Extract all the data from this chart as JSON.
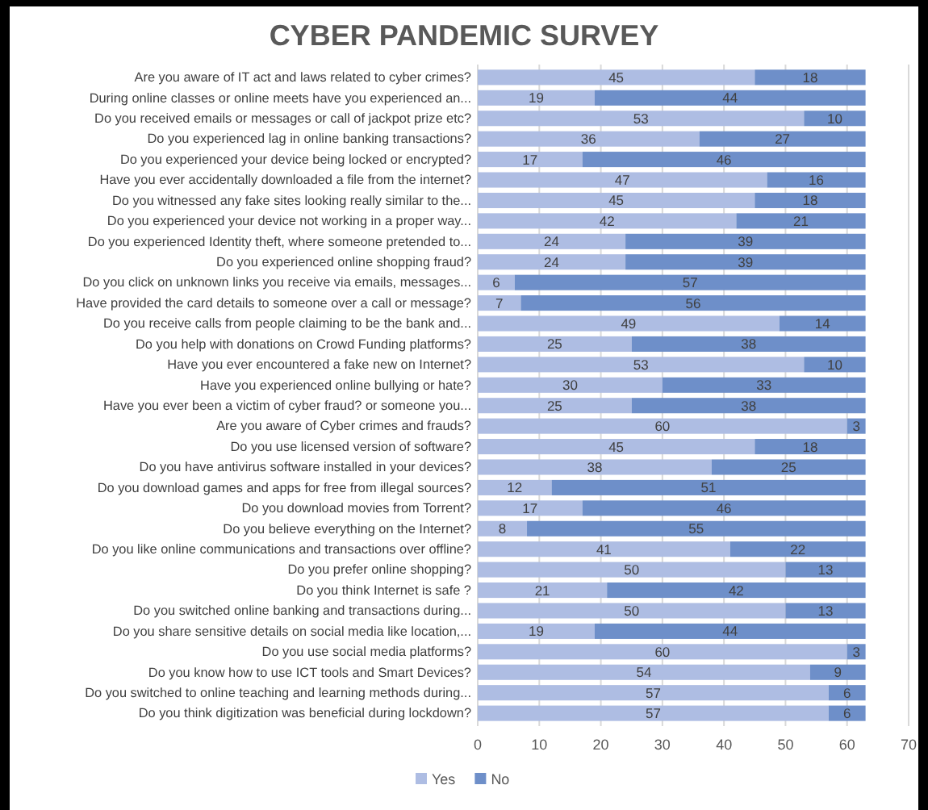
{
  "chart_data": {
    "type": "bar",
    "orientation": "horizontal",
    "stacked": true,
    "title": "CYBER PANDEMIC SURVEY",
    "categories": [
      "Are you aware of IT act and laws related to cyber crimes?",
      "During online classes or online meets have you experienced an...",
      "Do you received emails or messages or call of jackpot prize etc?",
      "Do you experienced lag in online banking transactions?",
      "Do you experienced your device being locked or encrypted?",
      "Have you ever accidentally downloaded a file from the internet?",
      "Do you witnessed any fake sites looking really similar to the...",
      "Do you experienced your device not working in a proper way...",
      "Do you experienced Identity theft, where someone  pretended to...",
      "Do you experienced online shopping fraud?",
      "Do you click on unknown links you receive via emails, messages...",
      "Have provided the card details to someone over a call or message?",
      "Do you receive calls from people claiming to be the bank and...",
      "Do you help with donations on Crowd Funding platforms?",
      "Have you ever encountered a fake new on Internet?",
      "Have you experienced online bullying or hate?",
      "Have you ever been a victim of cyber fraud? or someone you...",
      "Are you aware of Cyber crimes and frauds?",
      "Do you use licensed version of software?",
      "Do you have antivirus software installed in your devices?",
      "Do you download games and apps for free from illegal sources?",
      "Do you download movies from Torrent?",
      "Do you believe everything on the Internet?",
      "Do you like online communications and transactions over offline?",
      "Do you prefer online shopping?",
      "Do you think Internet is safe ?",
      "Do you switched online banking and transactions during...",
      "Do you share sensitive details on social media like location,...",
      "Do you use social media platforms?",
      "Do you know how to use ICT tools and Smart Devices?",
      "Do you switched to online teaching and learning methods during...",
      "Do you think digitization was beneficial during lockdown?"
    ],
    "series": [
      {
        "name": "Yes",
        "color": "#aebde3",
        "values": [
          45,
          19,
          53,
          36,
          17,
          47,
          45,
          42,
          24,
          24,
          6,
          7,
          49,
          25,
          53,
          30,
          25,
          60,
          45,
          38,
          12,
          17,
          8,
          41,
          50,
          21,
          50,
          19,
          60,
          54,
          57,
          57
        ]
      },
      {
        "name": "No",
        "color": "#6e8fc9",
        "values": [
          18,
          44,
          10,
          27,
          46,
          16,
          18,
          21,
          39,
          39,
          57,
          56,
          14,
          38,
          10,
          33,
          38,
          3,
          18,
          25,
          51,
          46,
          55,
          22,
          13,
          42,
          13,
          44,
          3,
          9,
          6,
          6
        ]
      }
    ],
    "xlim": [
      0,
      70
    ],
    "xticks": [
      0,
      10,
      20,
      30,
      40,
      50,
      60,
      70
    ],
    "grid": "x",
    "data_labels": true,
    "legend": "bottom"
  }
}
